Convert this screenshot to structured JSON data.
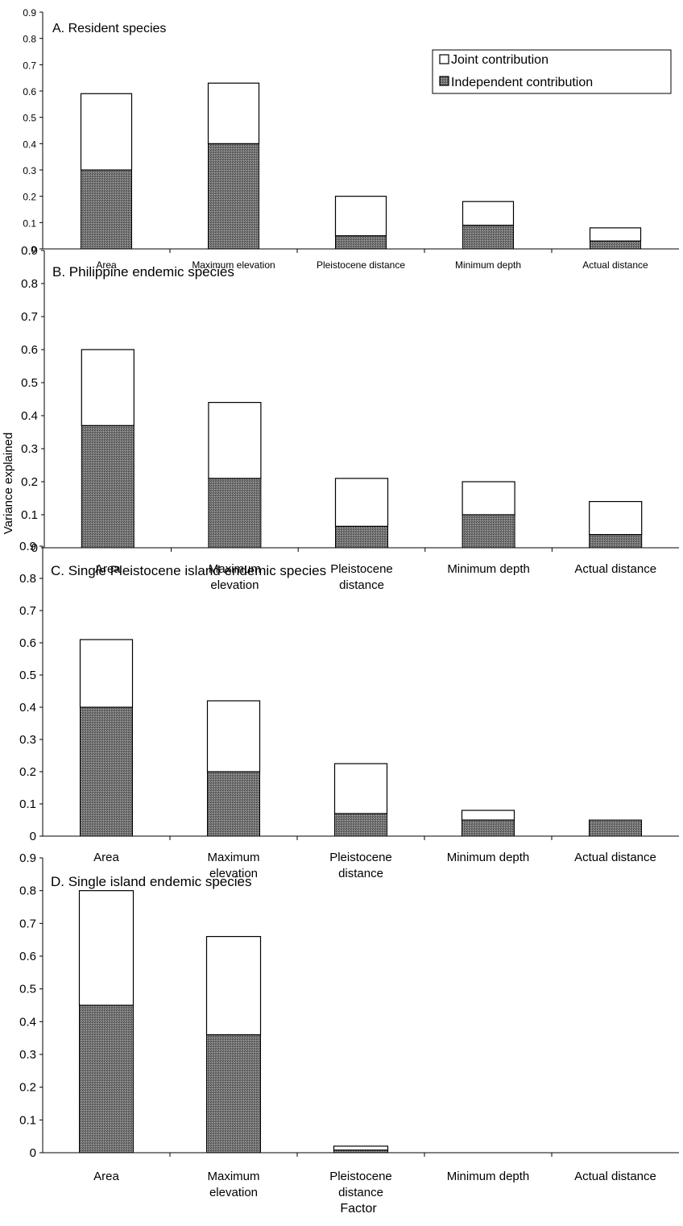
{
  "figure": {
    "ylabel": "Variance explained",
    "xlabel": "Factor"
  },
  "legend": {
    "items": [
      {
        "label": "Joint contribution",
        "color": "#ffffff"
      },
      {
        "label": "Independent contribution",
        "color": "#6e6e6e"
      }
    ]
  },
  "colors": {
    "joint": "#ffffff",
    "independent": "#6e6e6e",
    "outline": "#000000"
  },
  "chart_data": [
    {
      "type": "bar",
      "stacked": true,
      "title": "A. Resident species",
      "categories": [
        "Area",
        "Maximum elevation",
        "Pleistocene distance",
        "Minimum depth",
        "Actual distance"
      ],
      "series": [
        {
          "name": "Independent contribution",
          "values": [
            0.3,
            0.4,
            0.05,
            0.09,
            0.03
          ]
        },
        {
          "name": "Joint contribution",
          "values": [
            0.29,
            0.23,
            0.15,
            0.09,
            0.05
          ]
        }
      ],
      "ylim": [
        0,
        0.9
      ],
      "yticks": [
        "0",
        "0.1",
        "0.2",
        "0.3",
        "0.4",
        "0.5",
        "0.6",
        "0.7",
        "0.8",
        "0.9"
      ],
      "legend": "top-right",
      "grid": false
    },
    {
      "type": "bar",
      "stacked": true,
      "title": "B. Philippine endemic species",
      "categories": [
        "Area",
        "Maximum elevation",
        "Pleistocene distance",
        "Minimum depth",
        "Actual distance"
      ],
      "series": [
        {
          "name": "Independent contribution",
          "values": [
            0.37,
            0.21,
            0.065,
            0.1,
            0.04
          ]
        },
        {
          "name": "Joint contribution",
          "values": [
            0.23,
            0.23,
            0.145,
            0.1,
            0.1
          ]
        }
      ],
      "ylim": [
        0,
        0.9
      ],
      "yticks": [
        "0",
        "0.1",
        "0.2",
        "0.3",
        "0.4",
        "0.5",
        "0.6",
        "0.7",
        "0.8",
        "0.9"
      ],
      "grid": false
    },
    {
      "type": "bar",
      "stacked": true,
      "title": "C. Single Pleistocene island endemic species",
      "categories": [
        "Area",
        "Maximum elevation",
        "Pleistocene distance",
        "Minimum depth",
        "Actual distance"
      ],
      "series": [
        {
          "name": "Independent contribution",
          "values": [
            0.4,
            0.2,
            0.07,
            0.05,
            0.05
          ]
        },
        {
          "name": "Joint contribution",
          "values": [
            0.21,
            0.22,
            0.155,
            0.03,
            0.0
          ]
        }
      ],
      "ylim": [
        0,
        0.9
      ],
      "yticks": [
        "0",
        "0.1",
        "0.2",
        "0.3",
        "0.4",
        "0.5",
        "0.6",
        "0.7",
        "0.8",
        "0.9"
      ],
      "grid": false
    },
    {
      "type": "bar",
      "stacked": true,
      "title": "D. Single island endemic species",
      "categories": [
        "Area",
        "Maximum elevation",
        "Pleistocene distance",
        "Minimum depth",
        "Actual distance"
      ],
      "series": [
        {
          "name": "Independent contribution",
          "values": [
            0.45,
            0.36,
            0.008,
            0.0,
            0.0
          ]
        },
        {
          "name": "Joint contribution",
          "values": [
            0.35,
            0.3,
            0.012,
            0.0,
            0.0
          ]
        }
      ],
      "ylim": [
        0,
        0.9
      ],
      "yticks": [
        "0",
        "0.1",
        "0.2",
        "0.3",
        "0.4",
        "0.5",
        "0.6",
        "0.7",
        "0.8",
        "0.9"
      ],
      "grid": false
    }
  ]
}
